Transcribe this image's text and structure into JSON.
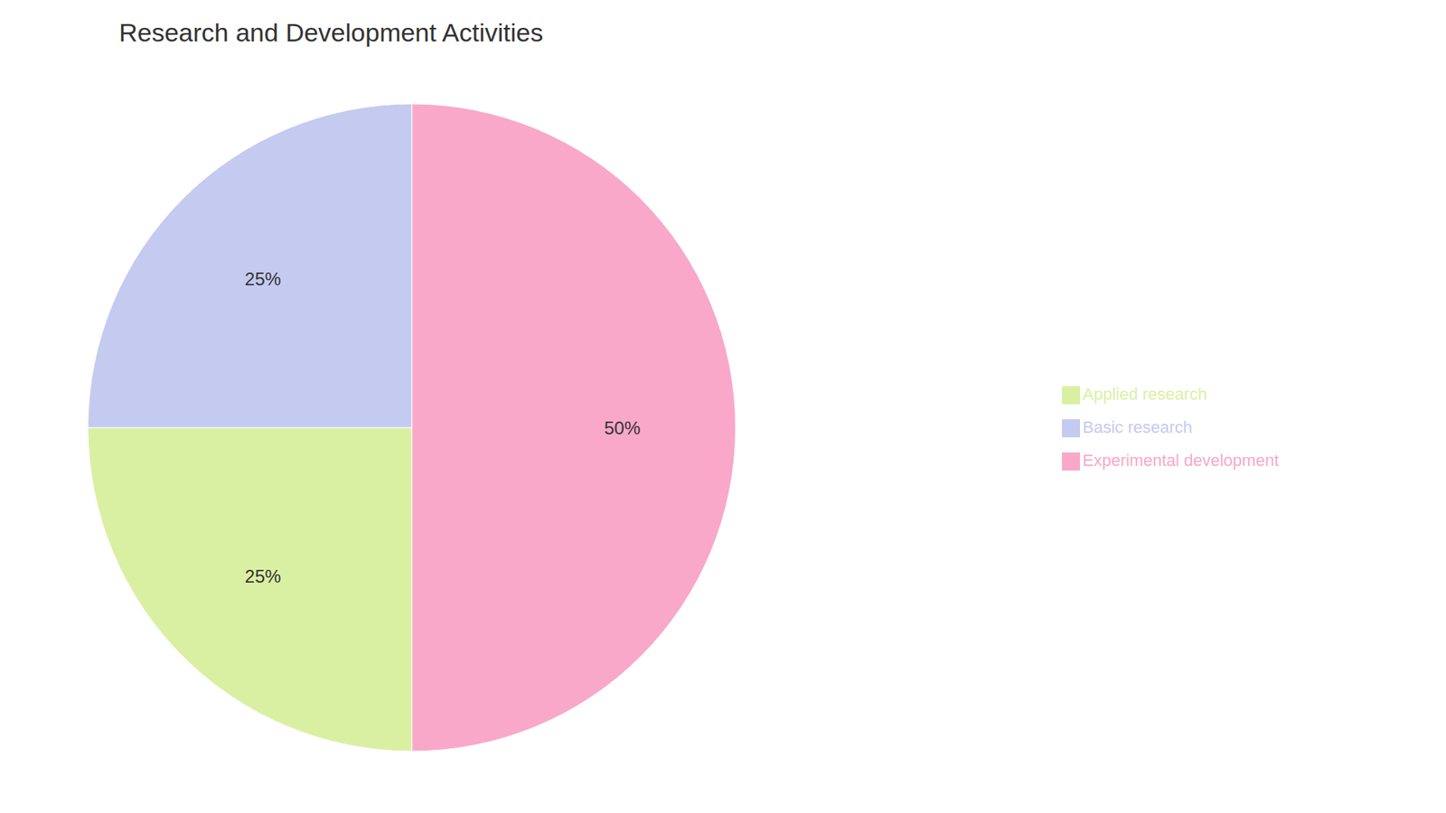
{
  "chart_data": {
    "type": "pie",
    "title": "Research and Development Activities",
    "categories": [
      "Experimental development",
      "Applied research",
      "Basic research"
    ],
    "values": [
      50,
      25,
      25
    ],
    "value_labels": [
      "50%",
      "25%",
      "25%"
    ],
    "colors": [
      "#F9A8C9",
      "#D9F0A3",
      "#C5CAF0"
    ],
    "data_labels": true,
    "legend": "right"
  }
}
